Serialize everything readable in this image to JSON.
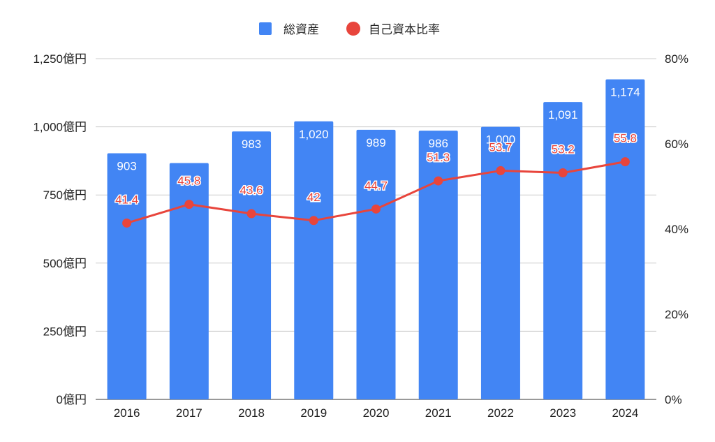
{
  "chart_data": {
    "type": "bar+line",
    "categories": [
      "2016",
      "2017",
      "2018",
      "2019",
      "2020",
      "2021",
      "2022",
      "2023",
      "2024"
    ],
    "series": [
      {
        "name": "総資産",
        "type": "bar",
        "axis": "left",
        "color": "#4285f4",
        "values": [
          903,
          867,
          983,
          1020,
          989,
          986,
          1000,
          1091,
          1174
        ],
        "labels": [
          "903",
          "",
          "983",
          "1,020",
          "989",
          "986",
          "1,000",
          "1,091",
          "1,174"
        ]
      },
      {
        "name": "自己資本比率",
        "type": "line",
        "axis": "right",
        "color": "#e8453c",
        "values": [
          41.4,
          45.8,
          43.6,
          42,
          44.7,
          51.3,
          53.7,
          53.2,
          55.8
        ],
        "labels": [
          "41.4",
          "45.8",
          "43.6",
          "42",
          "44.7",
          "51.3",
          "53.7",
          "53.2",
          "55.8"
        ]
      }
    ],
    "y_left": {
      "range": [
        0,
        1250
      ],
      "ticks": [
        0,
        250,
        500,
        750,
        1000,
        1250
      ],
      "tick_labels": [
        "0億円",
        "250億円",
        "500億円",
        "750億円",
        "1,000億円",
        "1,250億円"
      ]
    },
    "y_right": {
      "range": [
        0,
        80
      ],
      "ticks": [
        0,
        20,
        40,
        60,
        80
      ],
      "tick_labels": [
        "0%",
        "20%",
        "40%",
        "60%",
        "80%"
      ]
    },
    "legend": {
      "position": "top-center"
    },
    "grid": true
  }
}
